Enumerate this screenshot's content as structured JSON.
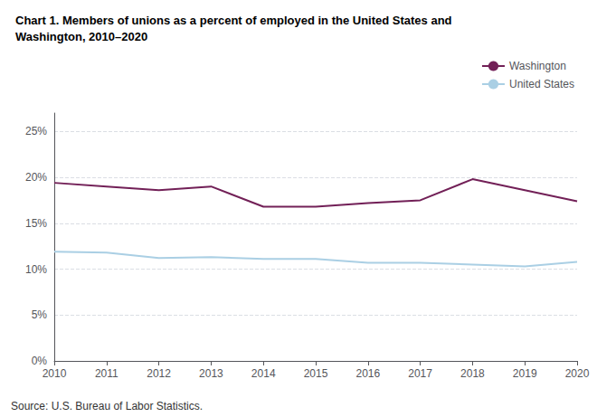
{
  "chart_data": {
    "type": "line",
    "title": "Chart 1. Members of unions as a percent of employed in the United States and\nWashington, 2010–2020",
    "source": "Source: U.S. Bureau of Labor Statistics.",
    "x": [
      2010,
      2011,
      2012,
      2013,
      2014,
      2015,
      2016,
      2017,
      2018,
      2019,
      2020
    ],
    "series": [
      {
        "name": "Washington",
        "color": "#722057",
        "values": [
          19.4,
          19.0,
          18.6,
          19.0,
          16.8,
          16.8,
          17.2,
          17.5,
          19.8,
          18.6,
          17.4
        ]
      },
      {
        "name": "United States",
        "color": "#aacfe4",
        "values": [
          11.9,
          11.8,
          11.2,
          11.3,
          11.1,
          11.1,
          10.7,
          10.7,
          10.5,
          10.3,
          10.8
        ]
      }
    ],
    "xlim": [
      2010,
      2020
    ],
    "xticks": [
      2010,
      2011,
      2012,
      2013,
      2014,
      2015,
      2016,
      2017,
      2018,
      2019,
      2020
    ],
    "ylim": [
      0,
      27
    ],
    "yticks": [
      {
        "value": 0,
        "label": "0%"
      },
      {
        "value": 5,
        "label": "5%"
      },
      {
        "value": 10,
        "label": "10%"
      },
      {
        "value": 15,
        "label": "15%"
      },
      {
        "value": 20,
        "label": "20%"
      },
      {
        "value": 25,
        "label": "25%"
      }
    ],
    "grid": true,
    "legend": "upper right"
  }
}
